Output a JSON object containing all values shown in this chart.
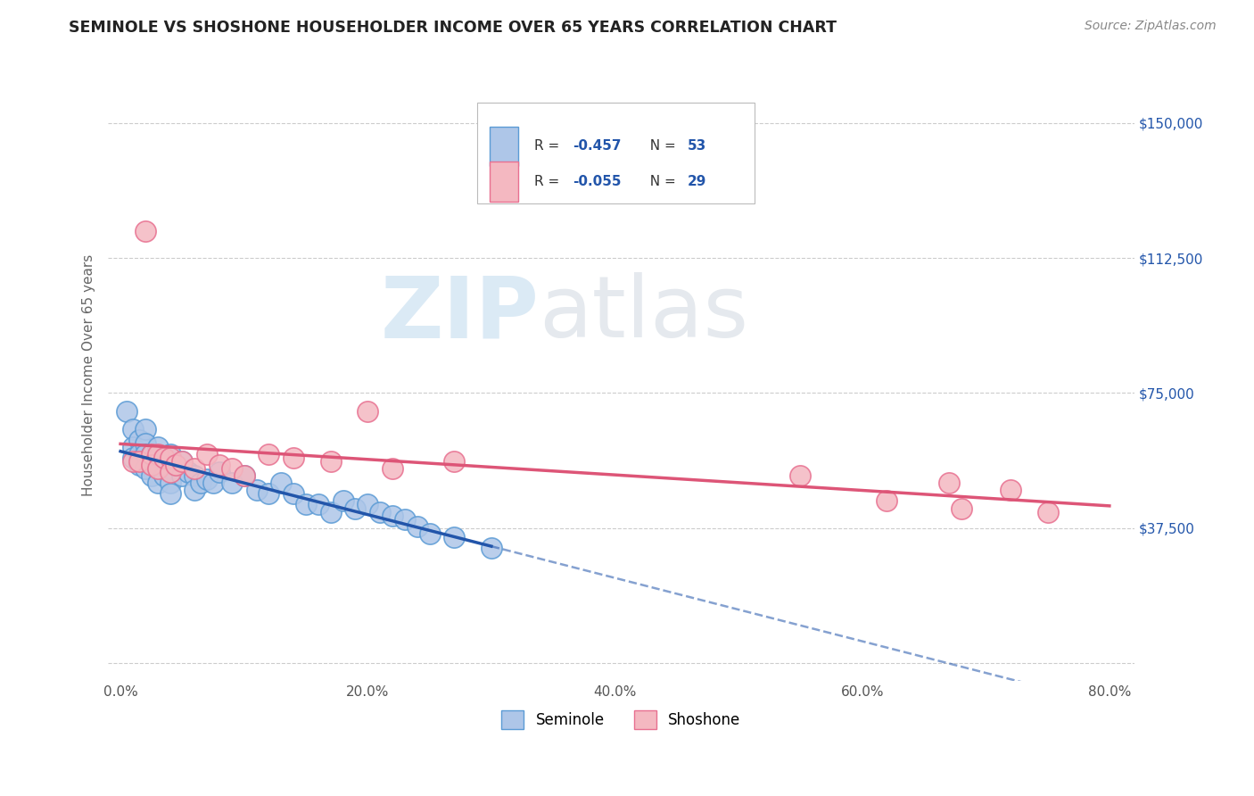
{
  "title": "SEMINOLE VS SHOSHONE HOUSEHOLDER INCOME OVER 65 YEARS CORRELATION CHART",
  "source_text": "Source: ZipAtlas.com",
  "ylabel": "Householder Income Over 65 years",
  "xlim": [
    -0.01,
    0.82
  ],
  "ylim": [
    -5000,
    165000
  ],
  "xtick_labels": [
    "0.0%",
    "20.0%",
    "40.0%",
    "60.0%",
    "80.0%"
  ],
  "xtick_values": [
    0.0,
    0.2,
    0.4,
    0.6,
    0.8
  ],
  "ytick_values": [
    0,
    37500,
    75000,
    112500,
    150000
  ],
  "ytick_labels": [
    "",
    "$37,500",
    "$75,000",
    "$112,500",
    "$150,000"
  ],
  "grid_color": "#cccccc",
  "background_color": "#ffffff",
  "seminole_color": "#aec6e8",
  "seminole_edge_color": "#5b9bd5",
  "shoshone_color": "#f4b8c1",
  "shoshone_edge_color": "#e87090",
  "seminole_trend_color": "#2255aa",
  "shoshone_trend_color": "#dd5577",
  "seminole_x": [
    0.005,
    0.01,
    0.01,
    0.01,
    0.015,
    0.015,
    0.015,
    0.02,
    0.02,
    0.02,
    0.02,
    0.025,
    0.025,
    0.025,
    0.03,
    0.03,
    0.03,
    0.03,
    0.035,
    0.035,
    0.04,
    0.04,
    0.04,
    0.04,
    0.045,
    0.05,
    0.05,
    0.055,
    0.06,
    0.06,
    0.065,
    0.07,
    0.075,
    0.08,
    0.09,
    0.1,
    0.11,
    0.12,
    0.13,
    0.14,
    0.15,
    0.16,
    0.17,
    0.18,
    0.19,
    0.2,
    0.21,
    0.22,
    0.23,
    0.24,
    0.25,
    0.27,
    0.3
  ],
  "seminole_y": [
    70000,
    65000,
    60000,
    57000,
    62000,
    58000,
    55000,
    65000,
    61000,
    58000,
    54000,
    58000,
    55000,
    52000,
    60000,
    57000,
    54000,
    50000,
    56000,
    52000,
    58000,
    54000,
    50000,
    47000,
    55000,
    56000,
    52000,
    53000,
    52000,
    48000,
    50000,
    51000,
    50000,
    53000,
    50000,
    52000,
    48000,
    47000,
    50000,
    47000,
    44000,
    44000,
    42000,
    45000,
    43000,
    44000,
    42000,
    41000,
    40000,
    38000,
    36000,
    35000,
    32000
  ],
  "shoshone_x": [
    0.01,
    0.015,
    0.02,
    0.025,
    0.025,
    0.03,
    0.03,
    0.035,
    0.04,
    0.04,
    0.045,
    0.05,
    0.06,
    0.07,
    0.08,
    0.09,
    0.1,
    0.12,
    0.14,
    0.17,
    0.2,
    0.22,
    0.27,
    0.55,
    0.62,
    0.67,
    0.68,
    0.72,
    0.75
  ],
  "shoshone_y": [
    56000,
    56000,
    120000,
    58000,
    55000,
    58000,
    54000,
    57000,
    57000,
    53000,
    55000,
    56000,
    54000,
    58000,
    55000,
    54000,
    52000,
    58000,
    57000,
    56000,
    70000,
    54000,
    56000,
    52000,
    45000,
    50000,
    43000,
    48000,
    42000
  ]
}
